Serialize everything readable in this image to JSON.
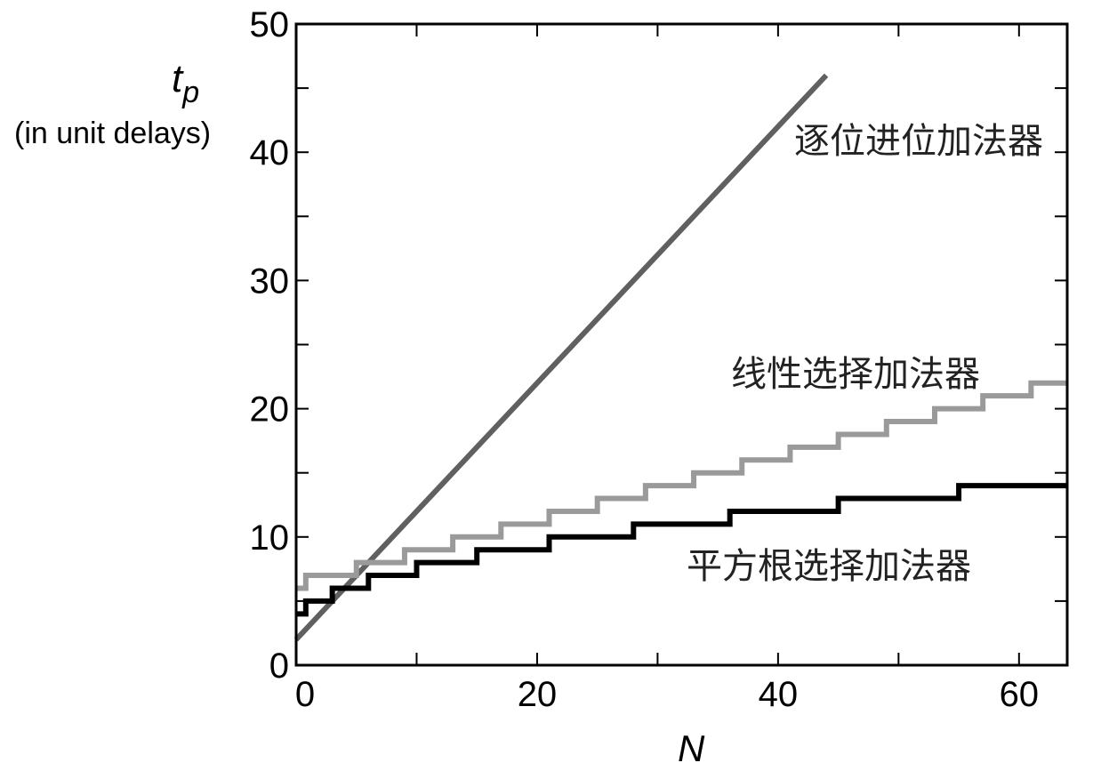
{
  "chart_data": {
    "type": "line",
    "title": "",
    "xlabel": "N",
    "ylabel": "t",
    "ylabel_subscript": "p",
    "ylabel_note": "(in unit delays)",
    "xlim": [
      0,
      64
    ],
    "ylim": [
      0,
      50
    ],
    "xticks": [
      0,
      20,
      40,
      60
    ],
    "yticks": [
      0,
      10,
      20,
      30,
      40,
      50
    ],
    "grid": false,
    "series": [
      {
        "name": "逐位进位加法器",
        "style": "line",
        "color": "#606060",
        "x": [
          0,
          44
        ],
        "y": [
          2,
          46
        ]
      },
      {
        "name": "线性选择加法器",
        "style": "step",
        "color": "#9a9a9a",
        "x": [
          0,
          0.8,
          5,
          9,
          13,
          17,
          21,
          25,
          29,
          33,
          37,
          41,
          45,
          49,
          53,
          57,
          61,
          64
        ],
        "y": [
          6,
          7,
          8,
          9,
          10,
          11,
          12,
          13,
          14,
          15,
          16,
          17,
          18,
          19,
          20,
          21,
          22,
          22
        ]
      },
      {
        "name": "平方根选择加法器",
        "style": "step",
        "color": "#000000",
        "x": [
          0,
          0.8,
          3,
          6,
          10,
          15,
          21,
          28,
          36,
          45,
          55,
          64
        ],
        "y": [
          4,
          5,
          6,
          7,
          8,
          9,
          10,
          11,
          12,
          13,
          14,
          14
        ]
      }
    ]
  }
}
